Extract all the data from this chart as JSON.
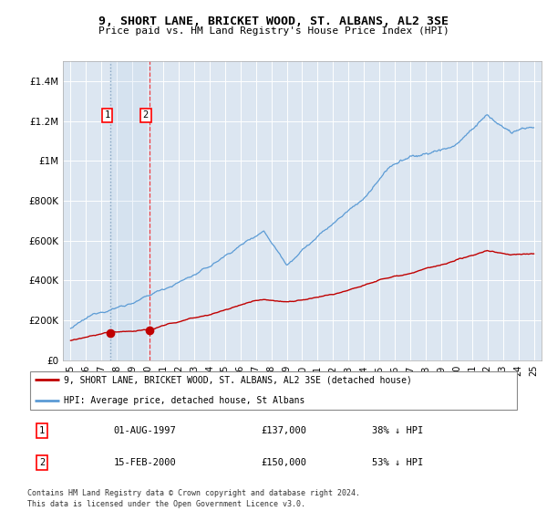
{
  "title": "9, SHORT LANE, BRICKET WOOD, ST. ALBANS, AL2 3SE",
  "subtitle": "Price paid vs. HM Land Registry's House Price Index (HPI)",
  "ytick_labels": [
    "£0",
    "£200K",
    "£400K",
    "£600K",
    "£800K",
    "£1M",
    "£1.2M",
    "£1.4M"
  ],
  "yticks": [
    0,
    200000,
    400000,
    600000,
    800000,
    1000000,
    1200000,
    1400000
  ],
  "ylim": [
    0,
    1500000
  ],
  "legend_line1": "9, SHORT LANE, BRICKET WOOD, ST. ALBANS, AL2 3SE (detached house)",
  "legend_line2": "HPI: Average price, detached house, St Albans",
  "purchase1_date": "01-AUG-1997",
  "purchase1_price": 137000,
  "purchase1_label": "£137,000",
  "purchase1_hpi_pct": "38% ↓ HPI",
  "purchase2_date": "15-FEB-2000",
  "purchase2_price": 150000,
  "purchase2_label": "£150,000",
  "purchase2_hpi_pct": "53% ↓ HPI",
  "footnote1": "Contains HM Land Registry data © Crown copyright and database right 2024.",
  "footnote2": "This data is licensed under the Open Government Licence v3.0.",
  "hpi_color": "#5b9bd5",
  "price_color": "#c00000",
  "bg_color": "#dce6f1",
  "purchase1_x": 1997.6,
  "purchase2_x": 2000.1,
  "xlim_left": 1994.5,
  "xlim_right": 2025.5
}
